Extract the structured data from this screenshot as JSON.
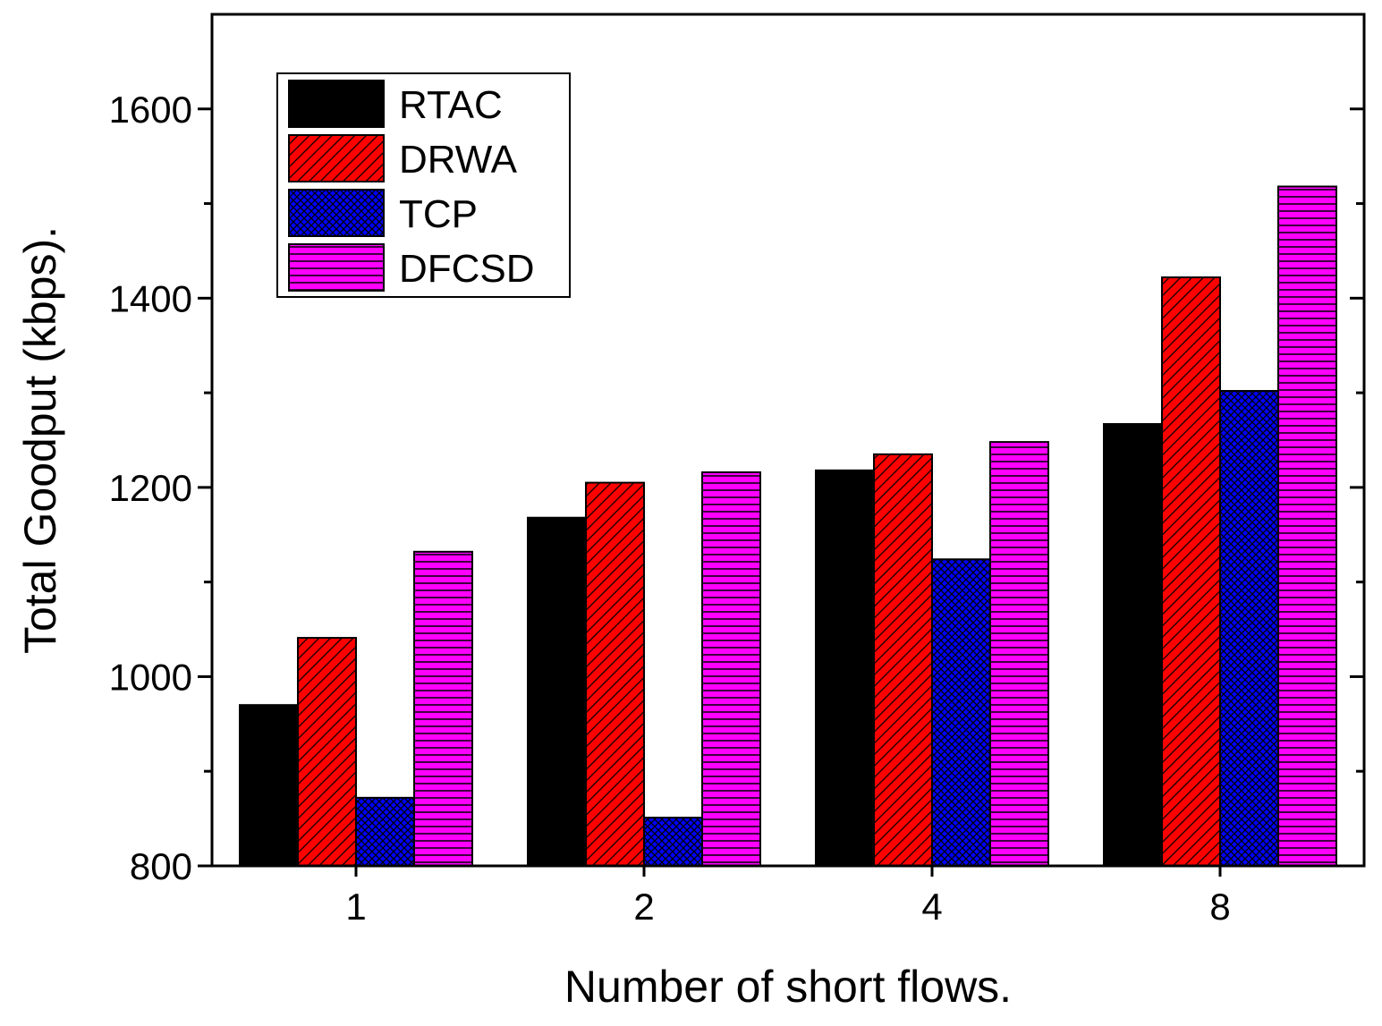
{
  "chart_data": {
    "type": "bar",
    "title": "",
    "xlabel": "Number of short flows.",
    "ylabel": "Total Goodput (kbps).",
    "categories": [
      "1",
      "2",
      "4",
      "8"
    ],
    "ylim": [
      800,
      1700
    ],
    "yticks": [
      800,
      1000,
      1200,
      1400,
      1600
    ],
    "series": [
      {
        "name": "RTAC",
        "color": "#000000",
        "pattern": "solid",
        "values": [
          970,
          1168,
          1218,
          1267
        ]
      },
      {
        "name": "DRWA",
        "color": "#ff0000",
        "pattern": "diagonal",
        "values": [
          1041,
          1205,
          1235,
          1422
        ]
      },
      {
        "name": "TCP",
        "color": "#0000ff",
        "pattern": "crosshatch",
        "values": [
          872,
          851,
          1124,
          1302
        ]
      },
      {
        "name": "DFCSD",
        "color": "#ff00ff",
        "pattern": "horizontal",
        "values": [
          1132,
          1216,
          1248,
          1518
        ]
      }
    ],
    "legend_position": "top-left",
    "grid": false
  }
}
